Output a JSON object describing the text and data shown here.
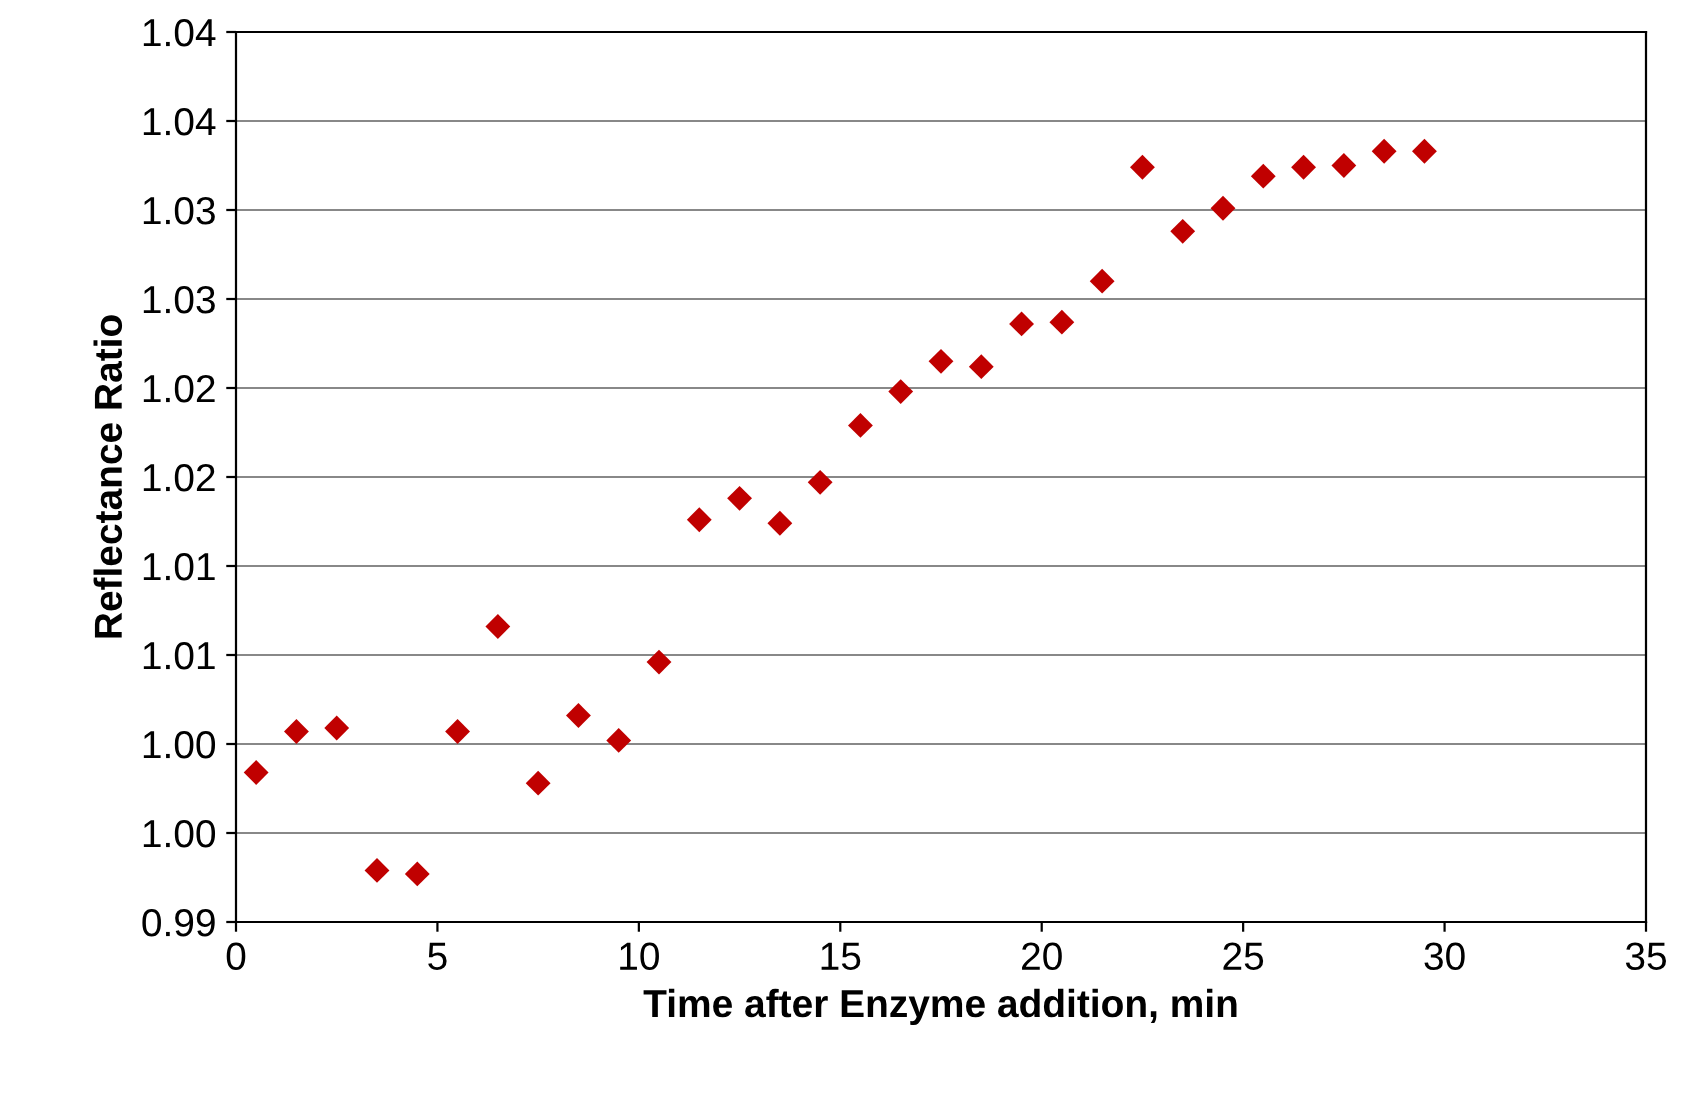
{
  "chart_data": {
    "type": "scatter",
    "xlabel": "Time after Enzyme addition, min",
    "ylabel": "Reflectance Ratio",
    "x": [
      0.5,
      1.5,
      2.5,
      3.5,
      4.5,
      5.5,
      6.5,
      7.5,
      8.5,
      9.5,
      10.5,
      11.5,
      12.5,
      13.5,
      14.5,
      15.5,
      16.5,
      17.5,
      18.5,
      19.5,
      20.5,
      21.5,
      22.5,
      23.5,
      24.5,
      25.5,
      26.5,
      27.5,
      28.5,
      29.5
    ],
    "series": [
      {
        "color": "#c00000",
        "values": [
          0.9984,
          1.0007,
          1.0009,
          0.9929,
          0.9927,
          1.0007,
          1.0066,
          0.9978,
          1.0016,
          1.0002,
          1.0046,
          1.0126,
          1.0138,
          1.0124,
          1.0147,
          1.0179,
          1.0198,
          1.0215,
          1.0212,
          1.0236,
          1.0237,
          1.026,
          1.0324,
          1.0288,
          1.0301,
          1.0319,
          1.0324,
          1.0325,
          1.0333,
          1.0333
        ]
      }
    ],
    "xlim": [
      0,
      35
    ],
    "xticks": [
      0,
      5,
      10,
      15,
      20,
      25,
      30,
      35
    ],
    "ylim": [
      0.99,
      1.04
    ],
    "yticks": [
      {
        "value": 0.99,
        "label": "0.99"
      },
      {
        "value": 0.995,
        "label": "1.00"
      },
      {
        "value": 1.0,
        "label": "1.00"
      },
      {
        "value": 1.005,
        "label": "1.01"
      },
      {
        "value": 1.01,
        "label": "1.01"
      },
      {
        "value": 1.015,
        "label": "1.02"
      },
      {
        "value": 1.02,
        "label": "1.02"
      },
      {
        "value": 1.025,
        "label": "1.03"
      },
      {
        "value": 1.03,
        "label": "1.03"
      },
      {
        "value": 1.035,
        "label": "1.04"
      },
      {
        "value": 1.04,
        "label": "1.04"
      }
    ],
    "grid": "y",
    "marker": "diamond"
  }
}
